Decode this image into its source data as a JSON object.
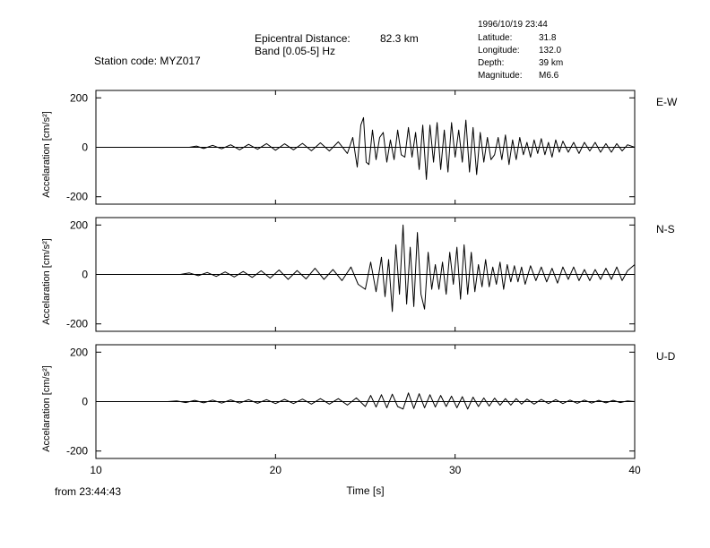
{
  "header": {
    "station": "Station code: MYZ017",
    "distance_label": "Epicentral Distance:",
    "distance_value": "82.3 km",
    "band": "Band [0.05-5] Hz",
    "datetime": "1996/10/19 23:44",
    "latitude_label": "Latitude:",
    "latitude_value": "31.8",
    "longitude_label": "Longitude:",
    "longitude_value": "132.0",
    "depth_label": "Depth:",
    "depth_value": "39 km",
    "magnitude_label": "Magnitude:",
    "magnitude_value": "M6.6"
  },
  "footer": {
    "start_time": "from 23:44:43"
  },
  "chart_data": {
    "type": "line",
    "xlabel": "Time [s]",
    "xlim": [
      10,
      40
    ],
    "xticks": [
      10,
      20,
      30,
      40
    ],
    "ylim": [
      -230,
      230
    ],
    "yticks": [
      -200,
      0,
      200
    ],
    "ylabel": "Accelaration [cm/s²]",
    "series": [
      {
        "name": "E-W",
        "x": [
          10,
          15.2,
          15.6,
          16.0,
          16.5,
          17.0,
          17.5,
          18.0,
          18.5,
          19.0,
          19.5,
          20.0,
          20.5,
          21.0,
          21.5,
          22.0,
          22.5,
          23.0,
          23.5,
          24.0,
          24.3,
          24.55,
          24.75,
          24.9,
          25.05,
          25.2,
          25.4,
          25.6,
          25.8,
          26.0,
          26.2,
          26.4,
          26.6,
          26.8,
          27.0,
          27.2,
          27.4,
          27.6,
          27.8,
          28.0,
          28.2,
          28.4,
          28.6,
          28.8,
          29.0,
          29.2,
          29.4,
          29.6,
          29.8,
          30.0,
          30.2,
          30.4,
          30.6,
          30.8,
          31.0,
          31.2,
          31.4,
          31.6,
          31.8,
          32.0,
          32.2,
          32.4,
          32.6,
          32.8,
          33.0,
          33.2,
          33.4,
          33.6,
          33.8,
          34.0,
          34.2,
          34.4,
          34.6,
          34.8,
          35.0,
          35.2,
          35.4,
          35.6,
          35.8,
          36.0,
          36.3,
          36.6,
          36.9,
          37.2,
          37.5,
          37.8,
          38.1,
          38.4,
          38.7,
          39.0,
          39.3,
          39.6,
          40.0
        ],
        "values": [
          0,
          0,
          5,
          -5,
          8,
          -6,
          10,
          -10,
          12,
          -8,
          15,
          -12,
          14,
          -10,
          16,
          -14,
          18,
          -15,
          22,
          -25,
          40,
          -80,
          90,
          120,
          -60,
          -70,
          70,
          -50,
          40,
          60,
          -60,
          30,
          -50,
          70,
          -30,
          -40,
          80,
          -40,
          60,
          -90,
          90,
          -130,
          90,
          -60,
          100,
          -90,
          70,
          -100,
          100,
          -40,
          70,
          -60,
          110,
          -100,
          80,
          -110,
          60,
          -60,
          40,
          -50,
          -30,
          40,
          -50,
          50,
          -70,
          30,
          -50,
          40,
          -30,
          20,
          -40,
          30,
          -25,
          35,
          -30,
          20,
          -40,
          30,
          -20,
          25,
          -20,
          20,
          -25,
          20,
          -15,
          20,
          -20,
          15,
          -20,
          15,
          -15,
          10,
          0
        ]
      },
      {
        "name": "N-S",
        "x": [
          10,
          14.7,
          15.2,
          15.7,
          16.2,
          16.7,
          17.2,
          17.7,
          18.2,
          18.7,
          19.2,
          19.7,
          20.2,
          20.7,
          21.2,
          21.7,
          22.2,
          22.7,
          23.2,
          23.7,
          24.2,
          24.6,
          25.0,
          25.3,
          25.6,
          25.9,
          26.1,
          26.3,
          26.5,
          26.7,
          26.9,
          27.1,
          27.3,
          27.5,
          27.7,
          27.9,
          28.1,
          28.3,
          28.5,
          28.7,
          28.9,
          29.1,
          29.3,
          29.5,
          29.7,
          29.9,
          30.1,
          30.3,
          30.5,
          30.7,
          30.9,
          31.1,
          31.3,
          31.5,
          31.7,
          31.9,
          32.1,
          32.3,
          32.5,
          32.7,
          32.9,
          33.1,
          33.3,
          33.5,
          33.7,
          33.9,
          34.2,
          34.5,
          34.8,
          35.1,
          35.4,
          35.7,
          36.0,
          36.3,
          36.6,
          36.9,
          37.2,
          37.5,
          37.8,
          38.1,
          38.4,
          38.7,
          39.0,
          39.3,
          39.6,
          40.0
        ],
        "values": [
          0,
          0,
          6,
          -5,
          8,
          -8,
          10,
          -10,
          12,
          -12,
          15,
          -15,
          18,
          -20,
          16,
          -18,
          25,
          -20,
          20,
          -25,
          30,
          -40,
          -60,
          50,
          -70,
          70,
          -90,
          60,
          -150,
          120,
          -80,
          200,
          -120,
          110,
          -130,
          170,
          -80,
          -140,
          90,
          -60,
          40,
          -60,
          50,
          -80,
          90,
          -40,
          110,
          -100,
          120,
          -80,
          90,
          -70,
          40,
          -50,
          60,
          -50,
          30,
          -40,
          50,
          -60,
          40,
          -30,
          35,
          -30,
          30,
          -40,
          35,
          -25,
          30,
          -30,
          25,
          -35,
          30,
          -20,
          30,
          -25,
          20,
          -25,
          20,
          -20,
          25,
          -20,
          30,
          -25,
          15,
          40
        ]
      },
      {
        "name": "U-D",
        "x": [
          10,
          14.0,
          14.5,
          15.0,
          15.5,
          16.0,
          16.5,
          17.0,
          17.5,
          18.0,
          18.5,
          19.0,
          19.5,
          20.0,
          20.5,
          21.0,
          21.5,
          22.0,
          22.5,
          23.0,
          23.5,
          24.0,
          24.5,
          25.0,
          25.3,
          25.6,
          25.9,
          26.2,
          26.5,
          26.8,
          27.1,
          27.4,
          27.7,
          28.0,
          28.3,
          28.6,
          28.9,
          29.2,
          29.5,
          29.8,
          30.1,
          30.4,
          30.7,
          31.0,
          31.3,
          31.6,
          31.9,
          32.2,
          32.5,
          32.8,
          33.1,
          33.4,
          33.7,
          34.0,
          34.4,
          34.8,
          35.2,
          35.6,
          36.0,
          36.4,
          36.8,
          37.2,
          37.6,
          38.0,
          38.4,
          38.8,
          39.2,
          39.6,
          40.0
        ],
        "values": [
          0,
          0,
          3,
          -4,
          5,
          -5,
          6,
          -6,
          7,
          -6,
          8,
          -7,
          8,
          -8,
          9,
          -8,
          10,
          -10,
          12,
          -10,
          12,
          -14,
          15,
          -20,
          25,
          -22,
          28,
          -25,
          30,
          -20,
          -30,
          35,
          -28,
          32,
          -25,
          28,
          -22,
          25,
          -20,
          22,
          -25,
          20,
          -30,
          18,
          -20,
          15,
          -18,
          14,
          -15,
          12,
          -14,
          12,
          -10,
          10,
          -10,
          9,
          -8,
          8,
          -8,
          6,
          -7,
          6,
          -6,
          5,
          -5,
          5,
          -4,
          3,
          0
        ]
      }
    ]
  }
}
